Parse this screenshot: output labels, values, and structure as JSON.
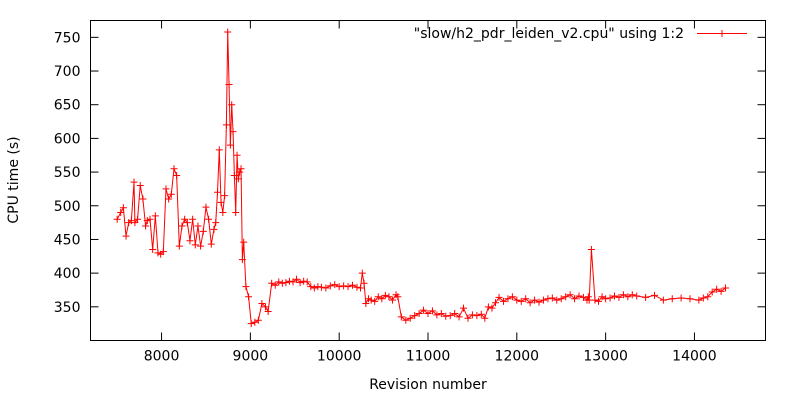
{
  "chart_data": {
    "type": "line",
    "xlabel": "Revision number",
    "ylabel": "CPU time (s)",
    "xlim": [
      7200,
      14800
    ],
    "ylim": [
      300,
      775
    ],
    "x_ticks": [
      8000,
      9000,
      10000,
      11000,
      12000,
      13000,
      14000
    ],
    "y_ticks": [
      350,
      400,
      450,
      500,
      550,
      600,
      650,
      700,
      750
    ],
    "grid": false,
    "legend": "top-right",
    "marker": "plus",
    "colors": {
      "series": "#ff0000",
      "axis": "#000000",
      "background": "#ffffff"
    },
    "series": [
      {
        "name": "\"slow/h2_pdr_leiden_v2.cpu\" using 1:2",
        "x": [
          7500,
          7540,
          7570,
          7600,
          7630,
          7660,
          7690,
          7700,
          7730,
          7760,
          7790,
          7820,
          7840,
          7870,
          7900,
          7930,
          7960,
          7990,
          8020,
          8050,
          8080,
          8110,
          8140,
          8170,
          8200,
          8230,
          8260,
          8290,
          8320,
          8350,
          8380,
          8410,
          8440,
          8470,
          8500,
          8530,
          8560,
          8590,
          8610,
          8630,
          8650,
          8670,
          8690,
          8710,
          8730,
          8745,
          8760,
          8775,
          8790,
          8805,
          8820,
          8835,
          8850,
          8865,
          8880,
          8895,
          8910,
          8925,
          8950,
          8980,
          9010,
          9050,
          9090,
          9130,
          9170,
          9200,
          9240,
          9280,
          9320,
          9360,
          9400,
          9440,
          9480,
          9520,
          9560,
          9600,
          9640,
          9680,
          9720,
          9760,
          9800,
          9850,
          9900,
          9950,
          10000,
          10050,
          10100,
          10150,
          10200,
          10240,
          10260,
          10280,
          10300,
          10330,
          10360,
          10400,
          10440,
          10480,
          10520,
          10560,
          10600,
          10640,
          10660,
          10700,
          10750,
          10800,
          10850,
          10900,
          10950,
          11000,
          11050,
          11100,
          11150,
          11200,
          11250,
          11300,
          11350,
          11400,
          11450,
          11500,
          11550,
          11600,
          11640,
          11680,
          11720,
          11760,
          11800,
          11850,
          11900,
          11950,
          12000,
          12050,
          12100,
          12150,
          12200,
          12250,
          12300,
          12350,
          12400,
          12450,
          12500,
          12550,
          12600,
          12650,
          12700,
          12750,
          12790,
          12805,
          12815,
          12840,
          12880,
          12920,
          12960,
          13000,
          13050,
          13100,
          13150,
          13200,
          13250,
          13300,
          13350,
          13450,
          13550,
          13650,
          13750,
          13850,
          13950,
          14050,
          14100,
          14150,
          14200,
          14250,
          14300,
          14350
        ],
        "y": [
          480,
          490,
          497,
          455,
          475,
          478,
          535,
          475,
          480,
          530,
          510,
          470,
          478,
          480,
          435,
          485,
          430,
          428,
          432,
          525,
          510,
          517,
          555,
          545,
          440,
          470,
          480,
          475,
          448,
          480,
          442,
          470,
          440,
          462,
          498,
          480,
          443,
          465,
          475,
          520,
          583,
          505,
          490,
          515,
          620,
          758,
          680,
          590,
          650,
          610,
          545,
          490,
          575,
          540,
          550,
          555,
          420,
          446,
          380,
          365,
          325,
          327,
          330,
          355,
          350,
          343,
          385,
          382,
          387,
          385,
          386,
          388,
          387,
          391,
          386,
          388,
          387,
          380,
          378,
          380,
          379,
          378,
          381,
          383,
          380,
          381,
          380,
          382,
          379,
          378,
          400,
          385,
          355,
          362,
          360,
          358,
          365,
          362,
          367,
          365,
          360,
          368,
          365,
          335,
          330,
          333,
          337,
          340,
          345,
          340,
          344,
          338,
          340,
          336,
          337,
          340,
          335,
          348,
          333,
          338,
          337,
          339,
          333,
          350,
          348,
          356,
          364,
          358,
          362,
          365,
          360,
          358,
          362,
          356,
          360,
          357,
          360,
          362,
          363,
          360,
          362,
          365,
          368,
          362,
          366,
          364,
          360,
          365,
          360,
          435,
          360,
          358,
          365,
          362,
          363,
          366,
          364,
          368,
          365,
          368,
          366,
          364,
          367,
          360,
          362,
          363,
          362,
          360,
          363,
          365,
          372,
          376,
          373,
          378
        ]
      }
    ]
  }
}
